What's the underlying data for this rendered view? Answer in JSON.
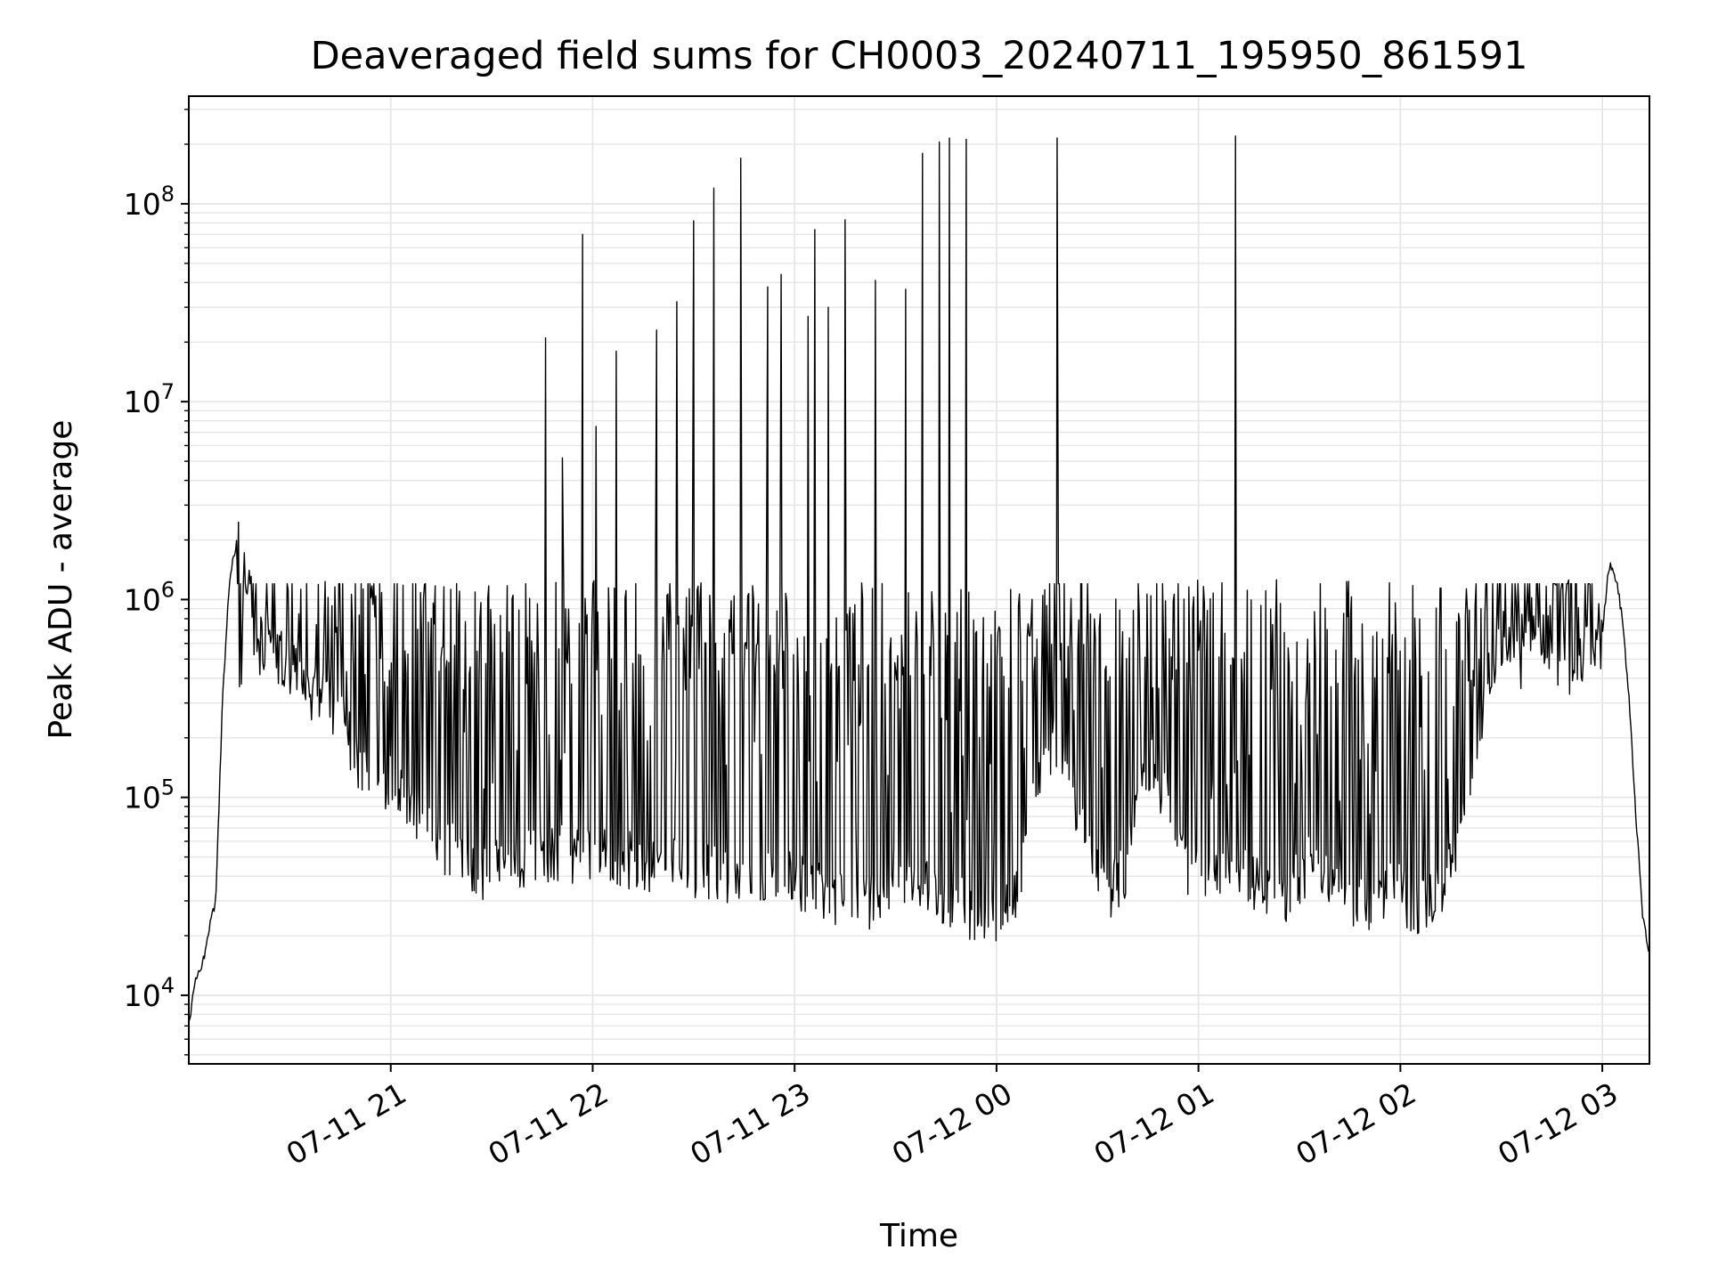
{
  "chart_data": {
    "type": "line",
    "title": "Deaveraged field sums for CH0003_20240711_195950_861591",
    "xlabel": "Time",
    "ylabel": "Peak ADU - average",
    "yscale": "log",
    "grid": true,
    "line_color": "#000000",
    "xlim": [
      "2024-07-11 20:00",
      "2024-07-12 03:14"
    ],
    "ylim": [
      4500,
      350000000
    ],
    "x_ticks": [
      "07-11 21",
      "07-11 22",
      "07-11 23",
      "07-12 00",
      "07-12 01",
      "07-12 02",
      "07-12 03"
    ],
    "y_ticks": [
      {
        "base": "10",
        "exp": "4",
        "value": 10000
      },
      {
        "base": "10",
        "exp": "5",
        "value": 100000
      },
      {
        "base": "10",
        "exp": "6",
        "value": 1000000
      },
      {
        "base": "10",
        "exp": "7",
        "value": 10000000
      },
      {
        "base": "10",
        "exp": "8",
        "value": 100000000
      }
    ],
    "series": [
      {
        "points": [
          [
            "2024-07-11 20:00",
            7000
          ],
          [
            "2024-07-11 20:02",
            12000
          ],
          [
            "2024-07-11 20:04",
            14000
          ],
          [
            "2024-07-11 20:06",
            22000
          ],
          [
            "2024-07-11 20:08",
            30000
          ],
          [
            "2024-07-11 20:10",
            300000
          ],
          [
            "2024-07-11 20:12",
            1200000
          ],
          [
            "2024-07-11 20:14",
            1900000
          ],
          [
            "2024-07-11 20:16",
            1600000
          ],
          [
            "2024-07-11 20:18",
            1300000
          ],
          [
            "2024-07-11 20:20",
            900000
          ],
          [
            "2024-07-11 20:22",
            650000
          ],
          [
            "2024-07-11 20:26",
            550000
          ],
          [
            "2024-07-11 20:30",
            450000
          ],
          [
            "2024-07-11 20:34",
            380000
          ],
          [
            "2024-07-11 20:38",
            320000
          ],
          [
            "2024-07-11 20:42",
            280000
          ],
          [
            "2024-07-11 20:46",
            250000
          ],
          [
            "2024-07-11 20:50",
            150000
          ],
          [
            "2024-07-11 20:54",
            130000
          ],
          [
            "2024-07-11 20:58",
            120000
          ],
          [
            "2024-07-11 21:02",
            110000
          ],
          [
            "2024-07-11 21:06",
            90000
          ],
          [
            "2024-07-11 21:10",
            80000
          ],
          [
            "2024-07-11 21:14",
            60000
          ],
          [
            "2024-07-11 21:18",
            55000
          ],
          [
            "2024-07-11 21:22",
            45000
          ],
          [
            "2024-07-11 21:26",
            40000
          ],
          [
            "2024-07-11 21:30",
            42000
          ],
          [
            "2024-07-11 21:34",
            45000
          ],
          [
            "2024-07-11 21:38",
            48000
          ],
          [
            "2024-07-11 21:42",
            50000
          ],
          [
            "2024-07-11 21:46",
            48000
          ],
          [
            "2024-07-11 21:50",
            52000
          ],
          [
            "2024-07-11 21:54",
            50000
          ],
          [
            "2024-07-11 21:58",
            48000
          ],
          [
            "2024-07-11 22:02",
            50000
          ],
          [
            "2024-07-11 22:06",
            50000
          ],
          [
            "2024-07-11 22:10",
            48000
          ],
          [
            "2024-07-11 22:14",
            47000
          ],
          [
            "2024-07-11 22:18",
            46000
          ],
          [
            "2024-07-11 22:22",
            45000
          ],
          [
            "2024-07-11 22:26",
            44000
          ],
          [
            "2024-07-11 22:30",
            43000
          ],
          [
            "2024-07-11 22:34",
            42000
          ],
          [
            "2024-07-11 22:38",
            42000
          ],
          [
            "2024-07-11 22:42",
            41000
          ],
          [
            "2024-07-11 22:46",
            40000
          ],
          [
            "2024-07-11 22:50",
            40000
          ],
          [
            "2024-07-11 22:54",
            39000
          ],
          [
            "2024-07-11 22:58",
            38000
          ],
          [
            "2024-07-11 23:02",
            37000
          ],
          [
            "2024-07-11 23:06",
            35000
          ],
          [
            "2024-07-11 23:10",
            32000
          ],
          [
            "2024-07-11 23:14",
            30000
          ],
          [
            "2024-07-11 23:18",
            28000
          ],
          [
            "2024-07-11 23:22",
            30000
          ],
          [
            "2024-07-11 23:26",
            35000
          ],
          [
            "2024-07-11 23:30",
            40000
          ],
          [
            "2024-07-11 23:34",
            38000
          ],
          [
            "2024-07-11 23:38",
            36000
          ],
          [
            "2024-07-11 23:42",
            33000
          ],
          [
            "2024-07-11 23:46",
            30000
          ],
          [
            "2024-07-11 23:50",
            28000
          ],
          [
            "2024-07-11 23:54",
            26000
          ],
          [
            "2024-07-11 23:58",
            25000
          ],
          [
            "2024-07-12 00:02",
            26000
          ],
          [
            "2024-07-12 00:06",
            35000
          ],
          [
            "2024-07-12 00:10",
            80000
          ],
          [
            "2024-07-12 00:14",
            150000
          ],
          [
            "2024-07-12 00:18",
            200000
          ],
          [
            "2024-07-12 00:22",
            120000
          ],
          [
            "2024-07-12 00:26",
            60000
          ],
          [
            "2024-07-12 00:30",
            40000
          ],
          [
            "2024-07-12 00:34",
            35000
          ],
          [
            "2024-07-12 00:38",
            40000
          ],
          [
            "2024-07-12 00:42",
            120000
          ],
          [
            "2024-07-12 00:46",
            150000
          ],
          [
            "2024-07-12 00:50",
            100000
          ],
          [
            "2024-07-12 00:54",
            60000
          ],
          [
            "2024-07-12 00:58",
            40000
          ],
          [
            "2024-07-12 01:02",
            35000
          ],
          [
            "2024-07-12 01:06",
            40000
          ],
          [
            "2024-07-12 01:10",
            50000
          ],
          [
            "2024-07-12 01:14",
            40000
          ],
          [
            "2024-07-12 01:18",
            35000
          ],
          [
            "2024-07-12 01:22",
            30000
          ],
          [
            "2024-07-12 01:26",
            32000
          ],
          [
            "2024-07-12 01:30",
            40000
          ],
          [
            "2024-07-12 01:34",
            50000
          ],
          [
            "2024-07-12 01:38",
            40000
          ],
          [
            "2024-07-12 01:42",
            35000
          ],
          [
            "2024-07-12 01:46",
            30000
          ],
          [
            "2024-07-12 01:50",
            28000
          ],
          [
            "2024-07-12 01:54",
            30000
          ],
          [
            "2024-07-12 01:58",
            35000
          ],
          [
            "2024-07-12 02:02",
            30000
          ],
          [
            "2024-07-12 02:06",
            28000
          ],
          [
            "2024-07-12 02:10",
            32000
          ],
          [
            "2024-07-12 02:14",
            40000
          ],
          [
            "2024-07-12 02:18",
            60000
          ],
          [
            "2024-07-12 02:22",
            150000
          ],
          [
            "2024-07-12 02:26",
            400000
          ],
          [
            "2024-07-12 02:30",
            600000
          ],
          [
            "2024-07-12 02:34",
            700000
          ],
          [
            "2024-07-12 02:38",
            800000
          ],
          [
            "2024-07-12 02:42",
            700000
          ],
          [
            "2024-07-12 02:46",
            500000
          ],
          [
            "2024-07-12 02:50",
            450000
          ],
          [
            "2024-07-12 02:54",
            500000
          ],
          [
            "2024-07-12 02:58",
            600000
          ],
          [
            "2024-07-12 03:00",
            700000
          ],
          [
            "2024-07-12 03:02",
            1500000
          ],
          [
            "2024-07-12 03:04",
            1300000
          ],
          [
            "2024-07-12 03:06",
            800000
          ],
          [
            "2024-07-12 03:08",
            300000
          ],
          [
            "2024-07-12 03:10",
            80000
          ],
          [
            "2024-07-12 03:12",
            25000
          ],
          [
            "2024-07-12 03:14",
            16000
          ]
        ],
        "spikes": [
          [
            "2024-07-11 21:46",
            21000000
          ],
          [
            "2024-07-11 21:51",
            5200000
          ],
          [
            "2024-07-11 21:57",
            70000000
          ],
          [
            "2024-07-11 22:01",
            7500000
          ],
          [
            "2024-07-11 22:07",
            18000000
          ],
          [
            "2024-07-11 22:19",
            23000000
          ],
          [
            "2024-07-11 22:25",
            32000000
          ],
          [
            "2024-07-11 22:30",
            82000000
          ],
          [
            "2024-07-11 22:36",
            120000000
          ],
          [
            "2024-07-11 22:44",
            170000000
          ],
          [
            "2024-07-11 22:52",
            38000000
          ],
          [
            "2024-07-11 22:56",
            44000000
          ],
          [
            "2024-07-11 23:04",
            27000000
          ],
          [
            "2024-07-11 23:06",
            74000000
          ],
          [
            "2024-07-11 23:10",
            30000000
          ],
          [
            "2024-07-11 23:15",
            83000000
          ],
          [
            "2024-07-11 23:24",
            41000000
          ],
          [
            "2024-07-11 23:33",
            37000000
          ],
          [
            "2024-07-11 23:38",
            180000000
          ],
          [
            "2024-07-11 23:43",
            205000000
          ],
          [
            "2024-07-11 23:46",
            215000000
          ],
          [
            "2024-07-11 23:51",
            212000000
          ],
          [
            "2024-07-12 00:18",
            215000000
          ],
          [
            "2024-07-12 01:11",
            220000000
          ]
        ]
      }
    ]
  }
}
